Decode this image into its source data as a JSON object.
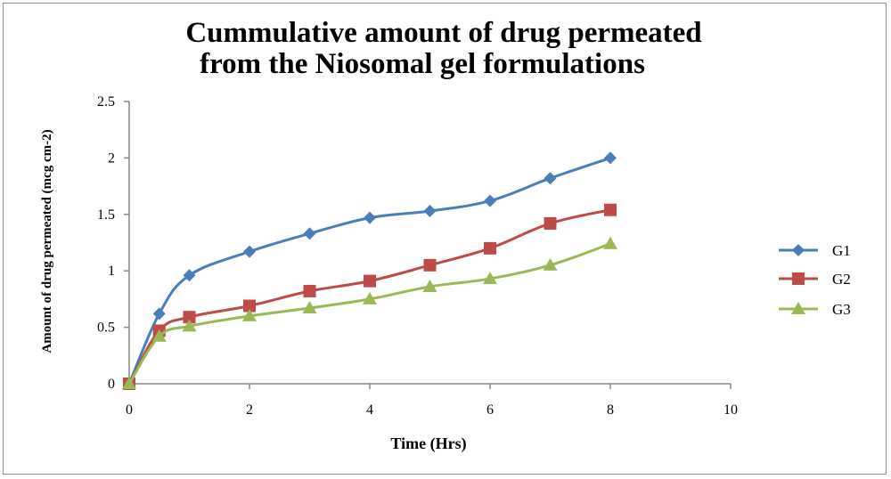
{
  "chart_data": {
    "type": "line",
    "title_lines": [
      "Cummulative amount of drug permeated",
      "from the Niosomal gel formulations"
    ],
    "xlabel": "Time (Hrs)",
    "ylabel": "Amount of drug permeated (mcg cm-2)",
    "xlim": [
      0,
      10
    ],
    "ylim": [
      0,
      2.5
    ],
    "xticks": [
      "0",
      "2",
      "4",
      "6",
      "8",
      "10"
    ],
    "yticks": [
      "0",
      "0.5",
      "1",
      "1.5",
      "2",
      "2.5"
    ],
    "grid": false,
    "legend_position": "right",
    "x": [
      0,
      0.5,
      1,
      2,
      3,
      4,
      5,
      6,
      7,
      8
    ],
    "series": [
      {
        "name": "G1",
        "color": "#4a7ebb",
        "marker": "diamond",
        "values": [
          0,
          0.62,
          0.96,
          1.17,
          1.33,
          1.47,
          1.53,
          1.62,
          1.82,
          2.0
        ]
      },
      {
        "name": "G2",
        "color": "#be4b48",
        "marker": "square",
        "values": [
          0,
          0.47,
          0.59,
          0.69,
          0.82,
          0.91,
          1.05,
          1.2,
          1.42,
          1.54
        ]
      },
      {
        "name": "G3",
        "color": "#98b954",
        "marker": "triangle",
        "values": [
          0,
          0.42,
          0.51,
          0.6,
          0.67,
          0.75,
          0.86,
          0.93,
          1.05,
          1.24
        ]
      }
    ]
  }
}
